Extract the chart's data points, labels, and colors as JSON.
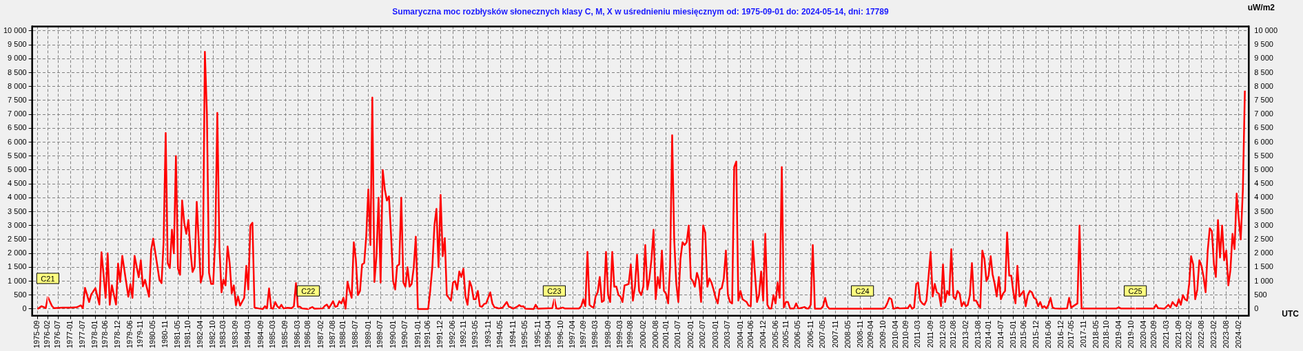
{
  "chart_data": {
    "type": "line",
    "title": "Sumaryczna moc rozbłysków słonecznych klasy C, M, X w uśrednieniu miesięcznym od: 1975-09-01 do: 2024-05-14, dni: 17789",
    "xlabel": "UTC",
    "y2label": "uW/m2",
    "x": [
      "1975-09",
      "1975-11",
      "1976-01",
      "1976-02",
      "1976-04",
      "1976-05",
      "1976-09",
      "1977-01",
      "1977-04",
      "1977-06",
      "1977-07",
      "1977-08",
      "1977-10",
      "1977-11",
      "1978-01",
      "1978-03",
      "1978-04",
      "1978-05",
      "1978-06",
      "1978-07",
      "1978-08",
      "1978-09",
      "1978-11",
      "1978-12",
      "1979-01",
      "1979-02",
      "1979-05",
      "1979-06",
      "1979-07",
      "1979-08",
      "1979-10",
      "1979-11",
      "1979-12",
      "1980-01",
      "1980-03",
      "1980-04",
      "1980-05",
      "1980-08",
      "1980-09",
      "1980-10",
      "1980-11",
      "1980-12",
      "1981-01",
      "1981-02",
      "1981-03",
      "1981-04",
      "1981-05",
      "1981-06",
      "1981-07",
      "1981-08",
      "1981-09",
      "1981-10",
      "1981-11",
      "1981-12",
      "1982-01",
      "1982-02",
      "1982-03",
      "1982-04",
      "1982-05",
      "1982-06",
      "1982-07",
      "1982-08",
      "1982-09",
      "1982-10",
      "1982-11",
      "1982-12",
      "1983-01",
      "1983-02",
      "1983-03",
      "1983-04",
      "1983-05",
      "1983-06",
      "1983-07",
      "1983-08",
      "1983-09",
      "1983-10",
      "1983-11",
      "1984-01",
      "1984-02",
      "1984-03",
      "1984-04",
      "1984-05",
      "1984-06",
      "1984-08",
      "1984-10",
      "1984-11",
      "1984-12",
      "1985-01",
      "1985-02",
      "1985-03",
      "1985-04",
      "1985-05",
      "1985-06",
      "1985-07",
      "1985-08",
      "1985-10",
      "1985-12",
      "1986-01",
      "1986-02",
      "1986-03",
      "1986-04",
      "1986-05",
      "1986-08",
      "1986-10",
      "1986-11",
      "1987-03",
      "1987-04",
      "1987-05",
      "1987-06",
      "1987-07",
      "1987-08",
      "1987-09",
      "1987-10",
      "1987-11",
      "1987-12",
      "1988-01",
      "1988-02",
      "1988-03",
      "1988-04",
      "1988-05",
      "1988-06",
      "1988-07",
      "1988-08",
      "1988-09",
      "1988-10",
      "1988-11",
      "1988-12",
      "1989-01",
      "1989-02",
      "1989-03",
      "1989-04",
      "1989-05",
      "1989-06",
      "1989-07",
      "1989-08",
      "1989-09",
      "1989-10",
      "1989-11",
      "1989-12",
      "1990-01",
      "1990-02",
      "1990-03",
      "1990-04",
      "1990-05",
      "1990-06",
      "1990-07",
      "1990-08",
      "1990-09",
      "1990-10",
      "1990-11",
      "1990-12",
      "1991-01",
      "1991-06",
      "1991-07",
      "1991-08",
      "1991-09",
      "1991-10",
      "1991-11",
      "1991-12",
      "1992-01",
      "1992-02",
      "1992-03",
      "1992-04",
      "1992-05",
      "1992-06",
      "1992-07",
      "1992-08",
      "1992-09",
      "1992-10",
      "1992-11",
      "1992-12",
      "1993-01",
      "1993-02",
      "1993-03",
      "1993-04",
      "1993-05",
      "1993-06",
      "1993-07",
      "1993-08",
      "1993-09",
      "1993-10",
      "1993-11",
      "1993-12",
      "1994-01",
      "1994-02",
      "1994-03",
      "1994-04",
      "1994-05",
      "1994-06",
      "1994-08",
      "1994-09",
      "1994-10",
      "1994-11",
      "1995-01",
      "1995-02",
      "1995-03",
      "1995-04",
      "1995-05",
      "1995-09",
      "1995-10",
      "1995-11",
      "1996-06",
      "1996-07",
      "1996-08",
      "1996-09",
      "1996-10",
      "1996-11",
      "1996-12",
      "1997-07",
      "1997-08",
      "1997-09",
      "1997-10",
      "1997-11",
      "1997-12",
      "1998-01",
      "1998-02",
      "1998-03",
      "1998-04",
      "1998-05",
      "1998-06",
      "1998-07",
      "1998-08",
      "1998-09",
      "1998-10",
      "1998-11",
      "1998-12",
      "1999-01",
      "1999-02",
      "1999-03",
      "1999-04",
      "1999-05",
      "1999-06",
      "1999-07",
      "1999-08",
      "1999-09",
      "1999-10",
      "1999-11",
      "1999-12",
      "2000-01",
      "2000-02",
      "2000-03",
      "2000-04",
      "2000-05",
      "2000-06",
      "2000-07",
      "2000-08",
      "2000-09",
      "2000-10",
      "2000-11",
      "2000-12",
      "2001-01",
      "2001-02",
      "2001-03",
      "2001-04",
      "2001-05",
      "2001-06",
      "2001-07",
      "2001-08",
      "2001-09",
      "2001-10",
      "2001-11",
      "2001-12",
      "2002-01",
      "2002-02",
      "2002-03",
      "2002-04",
      "2002-05",
      "2002-06",
      "2002-07",
      "2002-08",
      "2002-09",
      "2002-10",
      "2002-11",
      "2002-12",
      "2003-01",
      "2003-02",
      "2003-03",
      "2003-04",
      "2003-05",
      "2003-06",
      "2003-07",
      "2003-08",
      "2003-09",
      "2003-10",
      "2003-11",
      "2003-12",
      "2004-01",
      "2004-02",
      "2004-03",
      "2004-04",
      "2004-05",
      "2004-06",
      "2004-07",
      "2004-08",
      "2004-09",
      "2004-10",
      "2004-11",
      "2004-12",
      "2005-01",
      "2005-02",
      "2005-03",
      "2005-04",
      "2005-05",
      "2005-06",
      "2005-07",
      "2005-08",
      "2005-09",
      "2005-10",
      "2005-11",
      "2005-12",
      "2006-01",
      "2006-03",
      "2006-04",
      "2006-05",
      "2006-06",
      "2006-07",
      "2006-08",
      "2006-09",
      "2006-10",
      "2006-11",
      "2006-12",
      "2007-01",
      "2007-02",
      "2007-04",
      "2007-05",
      "2007-06",
      "2007-07",
      "2007-08",
      "2009-10",
      "2009-11",
      "2009-12",
      "2010-01",
      "2010-02",
      "2010-03",
      "2010-04",
      "2010-05",
      "2010-06",
      "2010-09",
      "2010-10",
      "2010-11",
      "2010-12",
      "2011-01",
      "2011-02",
      "2011-03",
      "2011-04",
      "2011-05",
      "2011-06",
      "2011-07",
      "2011-08",
      "2011-09",
      "2011-10",
      "2011-11",
      "2011-12",
      "2012-01",
      "2012-02",
      "2012-03",
      "2012-04",
      "2012-05",
      "2012-06",
      "2012-07",
      "2012-08",
      "2012-09",
      "2012-10",
      "2012-11",
      "2012-12",
      "2013-01",
      "2013-02",
      "2013-03",
      "2013-04",
      "2013-05",
      "2013-06",
      "2013-07",
      "2013-08",
      "2013-09",
      "2013-10",
      "2013-11",
      "2013-12",
      "2014-01",
      "2014-02",
      "2014-03",
      "2014-04",
      "2014-05",
      "2014-06",
      "2014-07",
      "2014-08",
      "2014-09",
      "2014-10",
      "2014-11",
      "2014-12",
      "2015-01",
      "2015-02",
      "2015-03",
      "2015-04",
      "2015-05",
      "2015-06",
      "2015-07",
      "2015-08",
      "2015-09",
      "2015-10",
      "2015-11",
      "2015-12",
      "2016-01",
      "2016-02",
      "2016-03",
      "2016-04",
      "2016-05",
      "2016-06",
      "2016-07",
      "2016-08",
      "2016-09",
      "2016-12",
      "2017-03",
      "2017-04",
      "2017-05",
      "2017-06",
      "2017-07",
      "2017-08",
      "2017-09",
      "2017-10",
      "2019-03",
      "2019-04",
      "2019-05",
      "2020-09",
      "2020-10",
      "2020-11",
      "2021-02",
      "2021-04",
      "2021-05",
      "2021-06",
      "2021-07",
      "2021-08",
      "2021-09",
      "2021-10",
      "2021-11",
      "2021-12",
      "2022-01",
      "2022-02",
      "2022-03",
      "2022-04",
      "2022-05",
      "2022-06",
      "2022-07",
      "2022-08",
      "2022-09",
      "2022-10",
      "2022-11",
      "2022-12",
      "2023-01",
      "2023-02",
      "2023-03",
      "2023-04",
      "2023-05",
      "2023-06",
      "2023-07",
      "2023-08",
      "2023-09",
      "2023-10",
      "2023-11",
      "2023-12",
      "2024-01",
      "2024-02",
      "2024-03",
      "2024-04",
      "2024-05"
    ],
    "series": [
      {
        "color": "#ff0000",
        "values": [
          0,
          100,
          30,
          430,
          110,
          30,
          50,
          50,
          60,
          130,
          30,
          760,
          250,
          520,
          750,
          160,
          2040,
          1260,
          400,
          2000,
          150,
          850,
          160,
          1630,
          970,
          1910,
          440,
          890,
          400,
          1910,
          1140,
          1750,
          810,
          1050,
          440,
          2120,
          2530,
          1050,
          930,
          2400,
          6330,
          1650,
          1470,
          2850,
          2000,
          5500,
          1450,
          1230,
          3900,
          3100,
          2700,
          3200,
          2100,
          1330,
          1500,
          3850,
          2500,
          950,
          1250,
          9250,
          7000,
          1300,
          900,
          900,
          2500,
          7050,
          2200,
          600,
          1050,
          850,
          2250,
          1650,
          560,
          850,
          130,
          450,
          120,
          400,
          1550,
          700,
          3000,
          3100,
          50,
          20,
          0,
          100,
          20,
          740,
          30,
          10,
          250,
          100,
          30,
          150,
          20,
          40,
          30,
          100,
          930,
          80,
          80,
          20,
          0,
          70,
          10,
          20,
          110,
          160,
          30,
          150,
          280,
          80,
          100,
          280,
          200,
          400,
          10,
          980,
          650,
          400,
          2400,
          1800,
          500,
          650,
          1600,
          1650,
          2600,
          4300,
          2300,
          7600,
          970,
          1900,
          4000,
          950,
          5000,
          4300,
          3900,
          4050,
          2700,
          1000,
          700,
          1550,
          1600,
          4000,
          950,
          800,
          1500,
          800,
          900,
          1500,
          2600,
          0,
          0,
          650,
          1500,
          3000,
          3600,
          1500,
          4100,
          1900,
          2550,
          500,
          400,
          300,
          950,
          1000,
          700,
          1350,
          1150,
          1450,
          450,
          150,
          1000,
          800,
          350,
          350,
          650,
          100,
          80,
          180,
          200,
          400,
          600,
          200,
          60,
          50,
          20,
          30,
          50,
          250,
          80,
          60,
          10,
          80,
          140,
          90,
          100,
          10,
          0,
          150,
          10,
          30,
          350,
          20,
          10,
          30,
          50,
          20,
          20,
          100,
          350,
          100,
          2050,
          150,
          80,
          50,
          450,
          600,
          1150,
          250,
          300,
          2050,
          500,
          250,
          2050,
          800,
          800,
          500,
          450,
          250,
          850,
          870,
          900,
          1600,
          300,
          800,
          1950,
          650,
          500,
          800,
          2300,
          700,
          1100,
          1800,
          2850,
          350,
          1150,
          750,
          2100,
          650,
          550,
          200,
          1500,
          6250,
          2500,
          900,
          250,
          1800,
          2400,
          2300,
          2400,
          3000,
          1100,
          1000,
          800,
          1300,
          1050,
          250,
          3000,
          2750,
          800,
          1100,
          950,
          700,
          400,
          200,
          700,
          750,
          1100,
          2100,
          500,
          250,
          200,
          5100,
          5300,
          300,
          650,
          350,
          300,
          250,
          120,
          100,
          2450,
          1300,
          250,
          500,
          1350,
          300,
          2700,
          150,
          20,
          20,
          500,
          200,
          950,
          400,
          5100,
          50,
          250,
          250,
          20,
          20,
          200,
          20,
          30,
          50,
          70,
          20,
          20,
          150,
          2300,
          10,
          10,
          10,
          100,
          400,
          100,
          10,
          10,
          50,
          200,
          400,
          350,
          10,
          20,
          50,
          20,
          30,
          30,
          150,
          10,
          50,
          900,
          950,
          300,
          200,
          150,
          300,
          1150,
          2050,
          450,
          900,
          600,
          550,
          100,
          1600,
          250,
          650,
          500,
          2150,
          450,
          350,
          650,
          550,
          100,
          250,
          100,
          150,
          500,
          1650,
          300,
          300,
          150,
          50,
          2100,
          1800,
          1000,
          1200,
          1900,
          1250,
          900,
          450,
          1150,
          350,
          550,
          650,
          2750,
          1200,
          1200,
          600,
          200,
          1550,
          450,
          550,
          650,
          100,
          500,
          650,
          600,
          400,
          350,
          100,
          250,
          50,
          100,
          20,
          150,
          400,
          50,
          20,
          10,
          20,
          400,
          50,
          100,
          150,
          200,
          3000,
          20,
          20,
          60,
          20,
          20,
          150,
          30,
          10,
          150,
          50,
          250,
          150,
          100,
          350,
          150,
          500,
          350,
          300,
          900,
          1900,
          1600,
          350,
          700,
          1750,
          1550,
          1150,
          600,
          2100,
          2900,
          2800,
          1600,
          1150,
          3200,
          1850,
          3000,
          1750,
          2100,
          850,
          1400,
          2700,
          2150,
          4150,
          3250,
          2500,
          4250,
          7850
        ]
      }
    ],
    "xlim": [
      "1975-06-15",
      "2024-06-28"
    ],
    "xticks": [
      "1975-09",
      "1976-02",
      "1976-07",
      "1977-01",
      "1977-07",
      "1978-01",
      "1978-06",
      "1978-12",
      "1979-06",
      "1979-11",
      "1980-05",
      "1980-11",
      "1981-05",
      "1981-10",
      "1982-04",
      "1982-10",
      "1983-03",
      "1983-09",
      "1984-03",
      "1984-09",
      "1985-03",
      "1985-09",
      "1986-03",
      "1986-08",
      "1987-02",
      "1987-08",
      "1988-01",
      "1988-07",
      "1989-01",
      "1989-07",
      "1990-01",
      "1990-07",
      "1991-01",
      "1991-06",
      "1991-12",
      "1992-06",
      "1992-11",
      "1993-05",
      "1993-11",
      "1994-05",
      "1994-11",
      "1995-05",
      "1995-11",
      "1996-04",
      "1996-10",
      "1997-04",
      "1997-09",
      "1998-03",
      "1998-09",
      "1999-03",
      "1999-08",
      "2000-02",
      "2000-08",
      "2001-01",
      "2001-07",
      "2002-01",
      "2002-07",
      "2003-01",
      "2003-07",
      "2004-01",
      "2004-06",
      "2004-12",
      "2005-06",
      "2005-11",
      "2006-05",
      "2006-11",
      "2007-05",
      "2007-11",
      "2008-05",
      "2008-11",
      "2009-04",
      "2009-10",
      "2010-04",
      "2010-09",
      "2011-03",
      "2011-09",
      "2012-03",
      "2012-08",
      "2013-02",
      "2013-08",
      "2014-01",
      "2014-07",
      "2015-01",
      "2015-06",
      "2015-12",
      "2016-06",
      "2016-12",
      "2017-05",
      "2017-11",
      "2018-05",
      "2018-10",
      "2019-04",
      "2019-10",
      "2020-04",
      "2020-09",
      "2021-03",
      "2021-09",
      "2022-02",
      "2022-08",
      "2023-02",
      "2023-08",
      "2024-02"
    ],
    "ylim": [
      -240,
      10160
    ],
    "yticks": [
      0,
      500,
      {
        "value": 1000,
        "label": "1 000"
      },
      {
        "value": 1500,
        "label": "1 500"
      },
      {
        "value": 2000,
        "label": "2 000"
      },
      {
        "value": 2500,
        "label": "2 500"
      },
      {
        "value": 3000,
        "label": "3 000"
      },
      {
        "value": 3500,
        "label": "3 500"
      },
      {
        "value": 4000,
        "label": "4 000"
      },
      {
        "value": 4500,
        "label": "4 500"
      },
      {
        "value": 5000,
        "label": "5 000"
      },
      {
        "value": 5500,
        "label": "5 500"
      },
      {
        "value": 6000,
        "label": "6 000"
      },
      {
        "value": 6500,
        "label": "6 500"
      },
      {
        "value": 7000,
        "label": "7 000"
      },
      {
        "value": 7500,
        "label": "7 500"
      },
      {
        "value": 8000,
        "label": "8 000"
      },
      {
        "value": 8500,
        "label": "8 500"
      },
      {
        "value": 9000,
        "label": "9 000"
      },
      {
        "value": 9500,
        "label": "9 500"
      },
      {
        "value": 10000,
        "label": "10 000"
      }
    ],
    "y2lim": [
      -240,
      10160
    ],
    "y2ticks": [
      0,
      500,
      {
        "value": 1000,
        "label": "1 000"
      },
      {
        "value": 1500,
        "label": "1 500"
      },
      {
        "value": 2000,
        "label": "2 000"
      },
      {
        "value": 2500,
        "label": "2 500"
      },
      {
        "value": 3000,
        "label": "3 000"
      },
      {
        "value": 3500,
        "label": "3 500"
      },
      {
        "value": 4000,
        "label": "4 000"
      },
      {
        "value": 4500,
        "label": "4 500"
      },
      {
        "value": 5000,
        "label": "5 000"
      },
      {
        "value": 5500,
        "label": "5 500"
      },
      {
        "value": 6000,
        "label": "6 000"
      },
      {
        "value": 6500,
        "label": "6 500"
      },
      {
        "value": 7000,
        "label": "7 000"
      },
      {
        "value": 7500,
        "label": "7 500"
      },
      {
        "value": 8000,
        "label": "8 000"
      },
      {
        "value": 8500,
        "label": "8 500"
      },
      {
        "value": 9000,
        "label": "9 000"
      },
      {
        "value": 9500,
        "label": "9 500"
      },
      {
        "value": 10000,
        "label": "10 000"
      }
    ],
    "grid": true,
    "annotations": [
      {
        "text": "C21",
        "x": "1976-02",
        "y": 1100
      },
      {
        "text": "C22",
        "x": "1986-08",
        "y": 650
      },
      {
        "text": "C23",
        "x": "1996-07",
        "y": 650
      },
      {
        "text": "C24",
        "x": "2008-12",
        "y": 650
      },
      {
        "text": "C25",
        "x": "2019-12",
        "y": 650
      }
    ]
  }
}
